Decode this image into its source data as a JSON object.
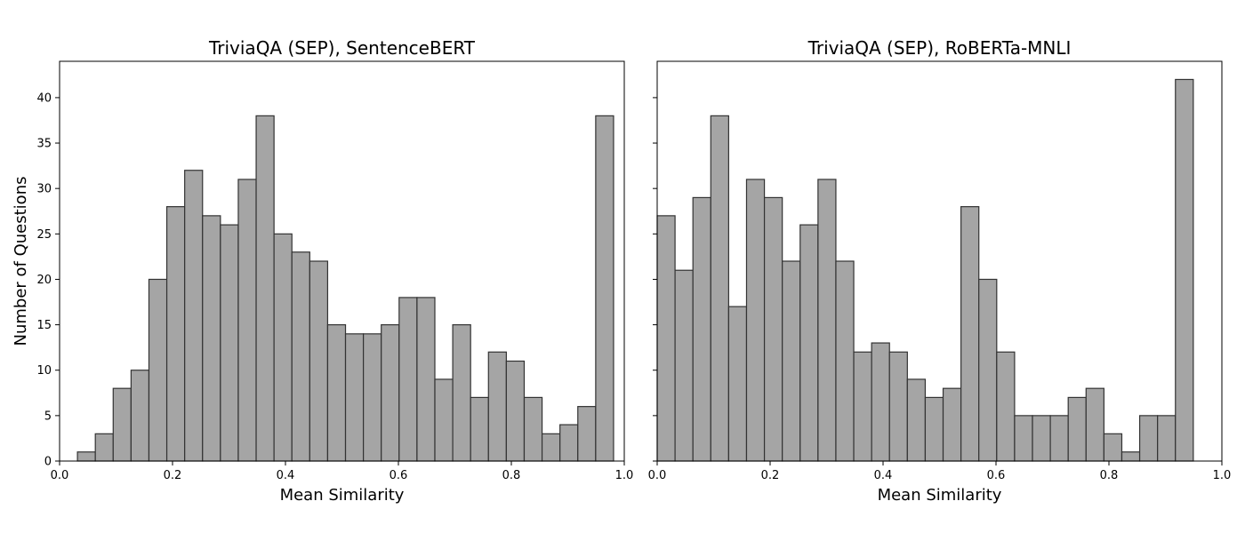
{
  "figure": {
    "ylabel": "Number of Questions"
  },
  "chart_data": [
    {
      "type": "bar",
      "title": "TriviaQA (SEP), SentenceBERT",
      "xlabel": "Mean Similarity",
      "ylabel": "Number of Questions",
      "xlim": [
        0.0,
        1.0
      ],
      "ylim": [
        0,
        44
      ],
      "xticks": [
        "0.0",
        "0.2",
        "0.4",
        "0.6",
        "0.8",
        "1.0"
      ],
      "yticks": [
        "0",
        "5",
        "10",
        "15",
        "20",
        "25",
        "30",
        "35",
        "40"
      ],
      "bins": {
        "start": 0.0,
        "width": 0.031646,
        "counts": [
          0,
          1,
          3,
          8,
          10,
          20,
          28,
          32,
          27,
          26,
          31,
          38,
          25,
          23,
          22,
          15,
          14,
          14,
          15,
          18,
          18,
          9,
          15,
          7,
          12,
          11,
          7,
          3,
          4,
          6,
          38
        ]
      }
    },
    {
      "type": "bar",
      "title": "TriviaQA (SEP), RoBERTa-MNLI",
      "xlabel": "Mean Similarity",
      "ylabel": "",
      "xlim": [
        0.0,
        1.0
      ],
      "ylim": [
        0,
        44
      ],
      "xticks": [
        "0.0",
        "0.2",
        "0.4",
        "0.6",
        "0.8",
        "1.0"
      ],
      "yticks": [
        "0",
        "5",
        "10",
        "15",
        "20",
        "25",
        "30",
        "35",
        "40"
      ],
      "bins": {
        "start": 0.0,
        "width": 0.031646,
        "counts": [
          27,
          21,
          29,
          38,
          17,
          31,
          29,
          22,
          26,
          31,
          22,
          12,
          13,
          12,
          9,
          7,
          8,
          28,
          20,
          12,
          5,
          5,
          5,
          7,
          8,
          3,
          1,
          5,
          5,
          42
        ]
      }
    }
  ]
}
